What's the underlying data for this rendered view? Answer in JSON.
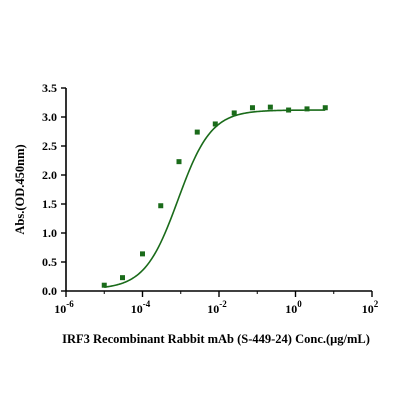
{
  "chart_data": {
    "type": "scatter",
    "xlabel": "IRF3 Recombinant Rabbit mAb (S-449-24) Conc.(μg/mL)",
    "ylabel": "Abs.(OD.450nm)",
    "x_scale": "log10",
    "xlim_exponent": [
      -6,
      2
    ],
    "x_ticks": [
      {
        "base": "10",
        "exp": "-6"
      },
      {
        "base": "10",
        "exp": "-4"
      },
      {
        "base": "10",
        "exp": "-2"
      },
      {
        "base": "10",
        "exp": "0"
      },
      {
        "base": "10",
        "exp": "2"
      }
    ],
    "ylim": [
      0,
      3.5
    ],
    "y_ticks": [
      "0.0",
      "0.5",
      "1.0",
      "1.5",
      "2.0",
      "2.5",
      "3.0",
      "3.5"
    ],
    "grid": false,
    "legend": "none",
    "series": [
      {
        "color": "#1a6b1a",
        "marker": "square",
        "x": [
          1e-05,
          3e-05,
          0.0001,
          0.0003,
          0.0009,
          0.0027,
          0.008,
          0.025,
          0.075,
          0.22,
          0.66,
          2,
          6
        ],
        "y": [
          0.1,
          0.23,
          0.64,
          1.47,
          2.23,
          2.74,
          2.88,
          3.07,
          3.16,
          3.17,
          3.12,
          3.14,
          3.16
        ]
      }
    ],
    "fit_curve": {
      "color": "#1a6b1a",
      "model": "4PL",
      "bottom": 0.03,
      "top": 3.12,
      "ec50": 0.00085,
      "hill": 1.0
    }
  }
}
